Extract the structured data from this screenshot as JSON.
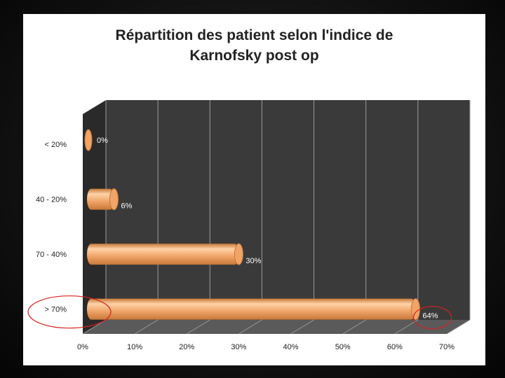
{
  "chart_data": {
    "type": "bar",
    "orientation": "horizontal",
    "title_lines": [
      "Répartition des patient selon l'indice de",
      "Karnofsky post op"
    ],
    "categories": [
      "< 20%",
      "40 - 20%",
      "70 - 40%",
      "> 70%"
    ],
    "values": [
      0,
      6,
      30,
      64
    ],
    "data_labels": [
      "0%",
      "6%",
      "30%",
      "64%"
    ],
    "x_ticks": [
      "0%",
      "10%",
      "20%",
      "30%",
      "40%",
      "50%",
      "60%",
      "70%"
    ],
    "xlim": [
      0,
      70
    ],
    "xlabel": "",
    "ylabel": "",
    "grid": true,
    "legend": "none",
    "highlighted_categories": [
      "> 70%"
    ],
    "colors": {
      "bar": "#f0a468",
      "bar_light": "#ffd2a6",
      "bar_dark": "#c67838",
      "plot_wall": "#3a3a3a",
      "plot_side": "#2a2a2a",
      "plot_floor": "#5a5a5a",
      "grid": "#9a9a9a",
      "highlight_ellipse": "#d92020",
      "panel": "#ffffff"
    }
  }
}
